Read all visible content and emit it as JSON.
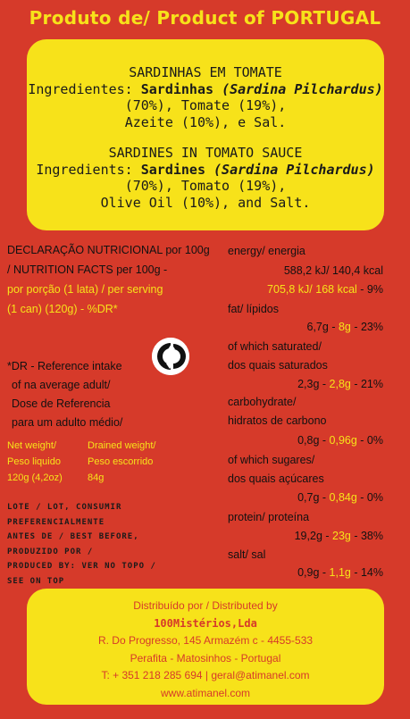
{
  "header": {
    "title": "Produto de/ Product of PORTUGAL"
  },
  "ingredients_pt": {
    "title": "SARDINHAS EM TOMATE",
    "prefix": "Ingredientes: ",
    "main": "Sardinhas",
    "latin": "(Sardina Pilchardus)",
    "rest1": " (70%), Tomate (19%),",
    "rest2": "Azeite (10%), e Sal."
  },
  "ingredients_en": {
    "title": "SARDINES IN TOMATO SAUCE",
    "prefix": "Ingredients: ",
    "main": "Sardines",
    "latin": "(Sardina Pilchardus)",
    "rest1": " (70%), Tomato (19%),",
    "rest2": "Olive Oil (10%), and Salt."
  },
  "nutrition_header": {
    "line1": "DECLARAÇÃO NUTRICIONAL por 100g",
    "line2": "/ NUTRITION FACTS per 100g -",
    "line3": "por porção (1 lata) / per serving",
    "line4": "(1 can) (120g) - %DR*"
  },
  "dr_note": [
    "*DR - Reference intake",
    "of na average adult/",
    "Dose de Referencia",
    "para um adulto médio/"
  ],
  "weights": {
    "net_label1": "Net weight/",
    "net_label2": "Peso liquido",
    "net_value": "120g (4,2oz)",
    "drained_label1": "Drained weight/",
    "drained_label2": "Peso escorrido",
    "drained_value": "84g"
  },
  "lot_text": [
    "LOTE / LOT, CONSUMIR",
    "PREFERENCIALMENTE",
    "ANTES DE / BEST BEFORE,",
    "PRODUZIDO POR /",
    "PRODUCED BY: VER NO TOPO /",
    "SEE ON TOP"
  ],
  "nutrients": {
    "energy": {
      "label": "energy/ energia",
      "per100": "588,2 kJ/ 140,4 kcal",
      "serving": "705,8 kJ/ 168 kcal",
      "dr": " - 9%"
    },
    "fat": {
      "label": "fat/ lípidos",
      "per100": "6,7g",
      "serving": "8g",
      "dr": " - 23%"
    },
    "saturated": {
      "label1": "of which saturated/",
      "label2": "dos quais saturados",
      "per100": "2,3g",
      "serving": "2,8g",
      "dr": " - 21%"
    },
    "carbs": {
      "label1": "carbohydrate/",
      "label2": "hidratos de carbono",
      "per100": "0,8g",
      "serving": "0,96g",
      "dr": " - 0%"
    },
    "sugars": {
      "label1": "of which sugares/",
      "label2": "dos quais açúcares",
      "per100": "0,7g",
      "serving": "0,84g",
      "dr": " - 0%"
    },
    "protein": {
      "label": "protein/ proteína",
      "per100": "19,2g",
      "serving": "23g",
      "dr": " - 38%"
    },
    "salt": {
      "label": "salt/ sal",
      "per100": "0,9g",
      "serving": "1,1g",
      "dr": " - 14%"
    }
  },
  "distributor": {
    "line1": "Distribuído por / Distributed by",
    "line2": "100Mistérios,Lda",
    "line3": "R. Do Progresso, 145 Armazém c - 4455-533",
    "line4": "Perafita - Matosinhos - Portugal",
    "line5": "T: + 351 218 285 694 | geral@atimanel.com",
    "line6": "www.atimanel.com"
  },
  "icons": {
    "recycle": "green-dot-recycling-icon"
  },
  "colors": {
    "background": "#d63a2a",
    "accent": "#f7e21a",
    "text": "#111111"
  }
}
